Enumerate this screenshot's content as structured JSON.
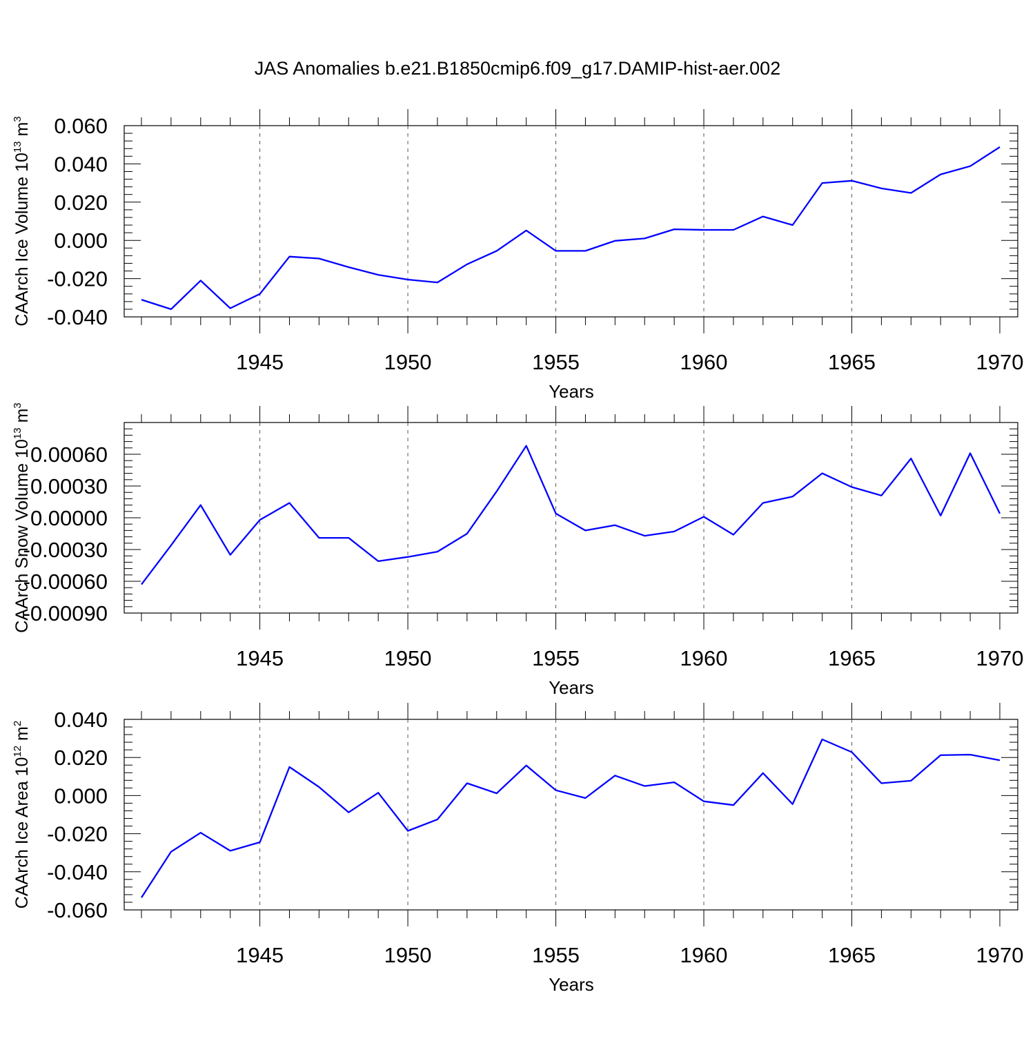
{
  "title": "JAS Anomalies b.e21.B1850cmip6.f09_g17.DAMIP-hist-aer.002",
  "colors": {
    "line": "#0000ff",
    "axis": "#000000",
    "grid": "#555555"
  },
  "chart_data": [
    {
      "type": "line",
      "xlabel": "Years",
      "ylabel_parts": [
        {
          "text": "CAArch Ice Volume 10",
          "sup": false
        },
        {
          "text": "13",
          "sup": true
        },
        {
          "text": " m",
          "sup": false
        },
        {
          "text": "3",
          "sup": true
        }
      ],
      "x": [
        1941,
        1942,
        1943,
        1944,
        1945,
        1946,
        1947,
        1948,
        1949,
        1950,
        1951,
        1952,
        1953,
        1954,
        1955,
        1956,
        1957,
        1958,
        1959,
        1960,
        1961,
        1962,
        1963,
        1964,
        1965,
        1966,
        1967,
        1968,
        1969,
        1970
      ],
      "values": [
        -0.031,
        -0.036,
        -0.021,
        -0.0355,
        -0.028,
        -0.0085,
        -0.0095,
        -0.014,
        -0.018,
        -0.0205,
        -0.022,
        -0.0125,
        -0.0055,
        0.0052,
        -0.0055,
        -0.0055,
        -0.0002,
        0.001,
        0.0058,
        0.0055,
        0.0055,
        0.0125,
        0.008,
        0.03,
        0.0312,
        0.0272,
        0.0248,
        0.0345,
        0.0388,
        0.0488
      ],
      "ylim": [
        -0.04,
        0.06
      ],
      "yticks": [
        "-0.040",
        "-0.020",
        "0.000",
        "0.020",
        "0.040",
        "0.060"
      ],
      "ytick_values": [
        -0.04,
        -0.02,
        0.0,
        0.02,
        0.04,
        0.06
      ],
      "xlim": [
        1941,
        1970
      ],
      "xticks": [
        "1945",
        "1950",
        "1955",
        "1960",
        "1965",
        "1970"
      ],
      "xtick_values": [
        1945,
        1950,
        1955,
        1960,
        1965,
        1970
      ],
      "grid": "dashed vertical lines at 1945, 1950, 1955, 1960, 1965"
    },
    {
      "type": "line",
      "xlabel": "Years",
      "ylabel_parts": [
        {
          "text": "CAArch Snow Volume 10",
          "sup": false
        },
        {
          "text": "13",
          "sup": true
        },
        {
          "text": " m",
          "sup": false
        },
        {
          "text": "3",
          "sup": true
        }
      ],
      "x": [
        1941,
        1942,
        1943,
        1944,
        1945,
        1946,
        1947,
        1948,
        1949,
        1950,
        1951,
        1952,
        1953,
        1954,
        1955,
        1956,
        1957,
        1958,
        1959,
        1960,
        1961,
        1962,
        1963,
        1964,
        1965,
        1966,
        1967,
        1968,
        1969,
        1970
      ],
      "values": [
        -0.00063,
        -0.00026,
        0.00012,
        -0.00035,
        -2e-05,
        0.00014,
        -0.00019,
        -0.00019,
        -0.00041,
        -0.00037,
        -0.00032,
        -0.00015,
        0.00025,
        0.00068,
        4e-05,
        -0.00012,
        -7e-05,
        -0.00017,
        -0.00013,
        1e-05,
        -0.00016,
        0.00014,
        0.0002,
        0.00042,
        0.00029,
        0.00021,
        0.00056,
        2e-05,
        0.00061,
        4e-05
      ],
      "ylim": [
        -0.0009,
        0.0009
      ],
      "yticks": [
        "-0.00090",
        "-0.00060",
        "-0.00030",
        "0.00000",
        "0.00030",
        "0.00060"
      ],
      "ytick_values": [
        -0.0009,
        -0.0006,
        -0.0003,
        0.0,
        0.0003,
        0.0006
      ],
      "xlim": [
        1941,
        1970
      ],
      "xticks": [
        "1945",
        "1950",
        "1955",
        "1960",
        "1965",
        "1970"
      ],
      "xtick_values": [
        1945,
        1950,
        1955,
        1960,
        1965,
        1970
      ],
      "grid": "dashed vertical lines at 1945, 1950, 1955, 1960, 1965"
    },
    {
      "type": "line",
      "xlabel": "Years",
      "ylabel_parts": [
        {
          "text": "CAArch Ice Area 10",
          "sup": false
        },
        {
          "text": "12",
          "sup": true
        },
        {
          "text": " m",
          "sup": false
        },
        {
          "text": "2",
          "sup": true
        }
      ],
      "x": [
        1941,
        1942,
        1943,
        1944,
        1945,
        1946,
        1947,
        1948,
        1949,
        1950,
        1951,
        1952,
        1953,
        1954,
        1955,
        1956,
        1957,
        1958,
        1959,
        1960,
        1961,
        1962,
        1963,
        1964,
        1965,
        1966,
        1967,
        1968,
        1969,
        1970
      ],
      "values": [
        -0.0535,
        -0.0295,
        -0.0195,
        -0.029,
        -0.0245,
        0.015,
        0.0045,
        -0.0088,
        0.0015,
        -0.0185,
        -0.0125,
        0.0065,
        0.0012,
        0.0158,
        0.0028,
        -0.0013,
        0.0105,
        0.005,
        0.007,
        -0.003,
        -0.005,
        0.0118,
        -0.0045,
        0.0295,
        0.0228,
        0.0065,
        0.0078,
        0.0212,
        0.0215,
        0.0185
      ],
      "ylim": [
        -0.06,
        0.04
      ],
      "yticks": [
        "-0.060",
        "-0.040",
        "-0.020",
        "0.000",
        "0.020",
        "0.040"
      ],
      "ytick_values": [
        -0.06,
        -0.04,
        -0.02,
        0.0,
        0.02,
        0.04
      ],
      "xlim": [
        1941,
        1970
      ],
      "xticks": [
        "1945",
        "1950",
        "1955",
        "1960",
        "1965",
        "1970"
      ],
      "xtick_values": [
        1945,
        1950,
        1955,
        1960,
        1965,
        1970
      ],
      "grid": "dashed vertical lines at 1945, 1950, 1955, 1960, 1965"
    }
  ]
}
